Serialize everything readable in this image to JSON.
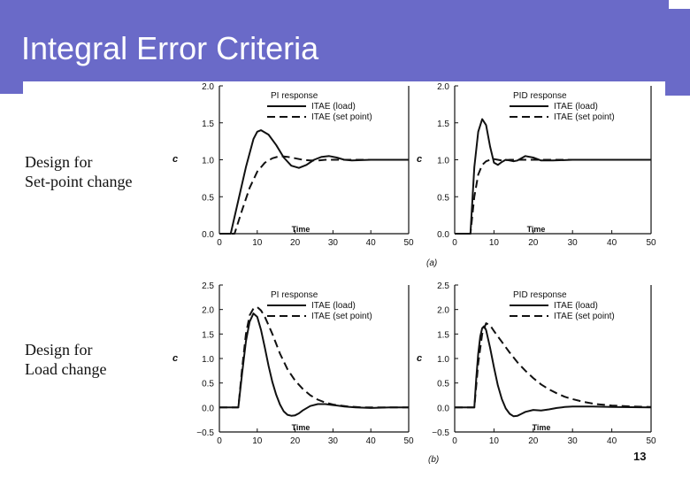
{
  "slide": {
    "title": "Integral Error Criteria",
    "row_labels": [
      {
        "line1": "Design  for",
        "line2": "Set-point change"
      },
      {
        "line1": "Design  for",
        "line2": "Load change"
      }
    ],
    "slide_number": "13",
    "panel_tags": [
      "(a)",
      "(b)"
    ]
  },
  "colors": {
    "title_bar": "#6a6ac8",
    "title_text": "#ffffff",
    "ink": "#111111"
  },
  "chart_data": [
    {
      "type": "line",
      "title": "PI response",
      "xlabel": "Time",
      "ylabel": "c",
      "xlim": [
        0,
        50
      ],
      "ylim": [
        0.0,
        2.0
      ],
      "xticks": [
        "0",
        "10",
        "20",
        "30",
        "40",
        "50"
      ],
      "yticks": [
        "0.0",
        "0.5",
        "1.0",
        "1.5",
        "2.0"
      ],
      "legend": "top-right",
      "series": [
        {
          "name": "ITAE (load)",
          "style": "solid",
          "x": [
            0,
            3,
            5,
            7,
            9,
            10,
            11,
            13,
            15,
            17,
            19,
            21,
            23,
            25,
            27,
            29,
            31,
            33,
            35,
            40,
            45,
            50
          ],
          "y": [
            0,
            0,
            0.45,
            0.9,
            1.28,
            1.38,
            1.4,
            1.34,
            1.2,
            1.03,
            0.92,
            0.89,
            0.93,
            1.0,
            1.04,
            1.05,
            1.03,
            1.0,
            0.99,
            1.0,
            1.0,
            1.0
          ]
        },
        {
          "name": "ITAE (set point)",
          "style": "dashed",
          "x": [
            0,
            4,
            6,
            8,
            10,
            12,
            14,
            16,
            18,
            20,
            22,
            24,
            26,
            28,
            30,
            35,
            40,
            45,
            50
          ],
          "y": [
            0,
            0,
            0.32,
            0.62,
            0.84,
            0.96,
            1.02,
            1.05,
            1.04,
            1.02,
            1.0,
            0.99,
            0.99,
            1.0,
            1.0,
            1.0,
            1.0,
            1.0,
            1.0
          ]
        }
      ]
    },
    {
      "type": "line",
      "title": "PID response",
      "xlabel": "Time",
      "ylabel": "c",
      "xlim": [
        0,
        50
      ],
      "ylim": [
        0.0,
        2.0
      ],
      "xticks": [
        "0",
        "10",
        "20",
        "30",
        "40",
        "50"
      ],
      "yticks": [
        "0.0",
        "0.5",
        "1.0",
        "1.5",
        "2.0"
      ],
      "legend": "top-right",
      "series": [
        {
          "name": "ITAE (load)",
          "style": "solid",
          "x": [
            0,
            4,
            5,
            6,
            7,
            8,
            9,
            10,
            11,
            12,
            13,
            14,
            15,
            16,
            18,
            20,
            22,
            25,
            30,
            40,
            50
          ],
          "y": [
            0,
            0,
            0.9,
            1.38,
            1.55,
            1.47,
            1.18,
            0.96,
            0.93,
            0.97,
            1.0,
            0.99,
            0.98,
            0.99,
            1.05,
            1.03,
            0.99,
            0.99,
            1.0,
            1.0,
            1.0
          ]
        },
        {
          "name": "ITAE (set point)",
          "style": "dashed",
          "x": [
            0,
            4,
            5,
            6,
            7,
            8,
            9,
            10,
            11,
            12,
            14,
            16,
            20,
            25,
            30,
            40,
            50
          ],
          "y": [
            0,
            0,
            0.5,
            0.8,
            0.93,
            0.98,
            1.0,
            1.01,
            1.0,
            0.99,
            1.0,
            1.0,
            1.0,
            1.0,
            1.0,
            1.0,
            1.0
          ]
        }
      ]
    },
    {
      "type": "line",
      "title": "PI response",
      "xlabel": "Time",
      "ylabel": "c",
      "xlim": [
        0,
        50
      ],
      "ylim": [
        -0.5,
        2.5
      ],
      "xticks": [
        "0",
        "10",
        "20",
        "30",
        "40",
        "50"
      ],
      "yticks": [
        "−0.5",
        "0.0",
        "0.5",
        "1.0",
        "1.5",
        "2.0",
        "2.5"
      ],
      "legend": "top-right",
      "series": [
        {
          "name": "ITAE (load)",
          "style": "solid",
          "x": [
            0,
            5,
            6,
            7,
            8,
            9,
            10,
            11,
            12,
            13,
            14,
            15,
            16,
            17,
            18,
            19,
            20,
            21,
            22,
            24,
            26,
            28,
            30,
            33,
            36,
            40,
            45,
            50
          ],
          "y": [
            0,
            0,
            0.7,
            1.35,
            1.75,
            1.92,
            1.85,
            1.58,
            1.22,
            0.85,
            0.52,
            0.26,
            0.06,
            -0.08,
            -0.15,
            -0.17,
            -0.16,
            -0.12,
            -0.06,
            0.03,
            0.07,
            0.07,
            0.05,
            0.02,
            0.0,
            -0.01,
            0.0,
            0.0
          ]
        },
        {
          "name": "ITAE (set point)",
          "style": "dashed",
          "x": [
            0,
            5,
            6,
            7,
            8,
            9,
            10,
            11,
            12,
            13,
            14,
            15,
            16,
            18,
            20,
            22,
            24,
            26,
            28,
            30,
            34,
            38,
            42,
            46,
            50
          ],
          "y": [
            0,
            0,
            0.8,
            1.5,
            1.88,
            2.02,
            2.05,
            1.98,
            1.85,
            1.68,
            1.5,
            1.3,
            1.1,
            0.78,
            0.55,
            0.38,
            0.25,
            0.16,
            0.1,
            0.06,
            0.02,
            0.0,
            0.0,
            0.0,
            0.0
          ]
        }
      ]
    },
    {
      "type": "line",
      "title": "PID response",
      "xlabel": "Time",
      "ylabel": "c",
      "xlim": [
        0,
        50
      ],
      "ylim": [
        -0.5,
        2.5
      ],
      "xticks": [
        "0",
        "10",
        "20",
        "30",
        "40",
        "50"
      ],
      "yticks": [
        "−0.5",
        "0.0",
        "0.5",
        "1.0",
        "1.5",
        "2.0",
        "2.5"
      ],
      "legend": "top-right",
      "series": [
        {
          "name": "ITAE (load)",
          "style": "solid",
          "x": [
            0,
            5,
            5.5,
            6,
            6.5,
            7,
            7.5,
            8,
            9,
            10,
            11,
            12,
            13,
            14,
            15,
            16,
            17,
            18,
            20,
            22,
            24,
            26,
            28,
            30,
            35,
            40,
            50
          ],
          "y": [
            0,
            0,
            0.6,
            1.1,
            1.45,
            1.62,
            1.66,
            1.58,
            1.22,
            0.82,
            0.45,
            0.17,
            -0.02,
            -0.13,
            -0.18,
            -0.17,
            -0.13,
            -0.09,
            -0.05,
            -0.06,
            -0.04,
            -0.01,
            0.01,
            0.02,
            0.02,
            0.01,
            0.0
          ]
        },
        {
          "name": "ITAE (set point)",
          "style": "dashed",
          "x": [
            0,
            5,
            6,
            7,
            8,
            9,
            10,
            11,
            12,
            14,
            16,
            18,
            20,
            22,
            24,
            26,
            28,
            30,
            33,
            36,
            40,
            45,
            50
          ],
          "y": [
            0,
            0,
            0.9,
            1.5,
            1.72,
            1.68,
            1.56,
            1.45,
            1.34,
            1.12,
            0.92,
            0.75,
            0.6,
            0.47,
            0.37,
            0.29,
            0.22,
            0.17,
            0.11,
            0.07,
            0.04,
            0.02,
            0.01
          ]
        }
      ]
    }
  ]
}
